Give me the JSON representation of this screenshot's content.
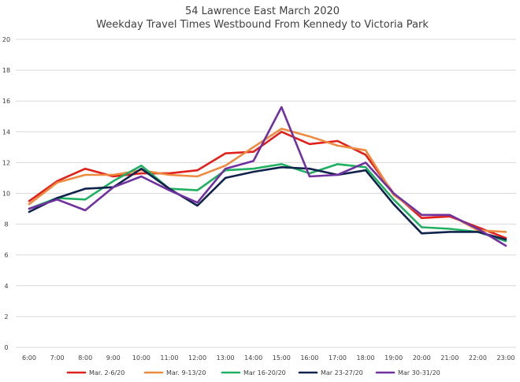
{
  "chart_data": {
    "type": "line",
    "title": "54 Lawrence East March 2020",
    "subtitle": "Weekday Travel Times Westbound From Kennedy to Victoria Park",
    "xlabel": "",
    "ylabel": "",
    "ylim": [
      0,
      20
    ],
    "yticks": [
      "0",
      "2",
      "4",
      "6",
      "8",
      "10",
      "12",
      "14",
      "16",
      "18",
      "20"
    ],
    "grid": true,
    "legend_position": "bottom",
    "categories": [
      "6:00",
      "7:00",
      "8:00",
      "9:00",
      "10:00",
      "11:00",
      "12:00",
      "13:00",
      "14:00",
      "15:00",
      "16:00",
      "17:00",
      "18:00",
      "19:00",
      "20:00",
      "21:00",
      "22:00",
      "23:00"
    ],
    "series": [
      {
        "name": "Mar. 2-6/20",
        "color": "#e0201b",
        "values": [
          9.5,
          10.8,
          11.6,
          11.1,
          11.3,
          11.3,
          11.5,
          12.6,
          12.7,
          14.0,
          13.2,
          13.4,
          12.5,
          10.0,
          8.4,
          8.5,
          7.8,
          7.1
        ]
      },
      {
        "name": "Mar. 9-13/20",
        "color": "#ed8a3f",
        "values": [
          9.3,
          10.7,
          11.2,
          11.2,
          11.5,
          11.2,
          11.1,
          11.8,
          13.0,
          14.2,
          13.7,
          13.1,
          12.8,
          9.9,
          8.6,
          8.6,
          7.6,
          7.5
        ]
      },
      {
        "name": "Mar 16-20/20",
        "color": "#1fb061",
        "values": [
          9.0,
          9.7,
          9.6,
          10.8,
          11.8,
          10.3,
          10.2,
          11.5,
          11.6,
          11.9,
          11.3,
          11.9,
          11.7,
          9.6,
          7.8,
          7.7,
          7.5,
          6.9
        ]
      },
      {
        "name": "Mar 23-27/20",
        "color": "#10234d",
        "values": [
          8.8,
          9.7,
          10.3,
          10.4,
          11.6,
          10.3,
          9.2,
          11.0,
          11.4,
          11.7,
          11.6,
          11.2,
          11.5,
          9.3,
          7.4,
          7.5,
          7.5,
          7.0
        ]
      },
      {
        "name": "Mar 30-31/20",
        "color": "#7030a0",
        "values": [
          9.0,
          9.6,
          8.9,
          10.4,
          11.1,
          10.2,
          9.4,
          11.6,
          12.1,
          15.6,
          11.1,
          11.2,
          12.0,
          10.0,
          8.6,
          8.6,
          7.7,
          6.6
        ]
      }
    ]
  }
}
